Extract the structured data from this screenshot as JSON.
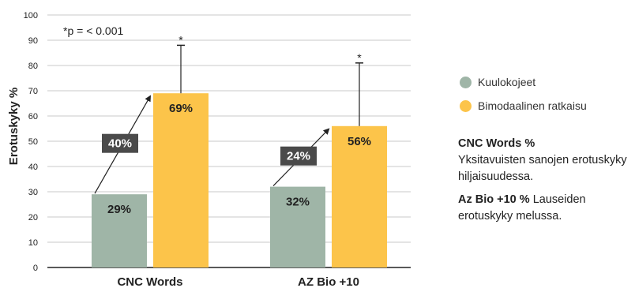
{
  "chart_data": {
    "type": "bar",
    "ylabel": "Erotuskyky %",
    "ylim": [
      0,
      100
    ],
    "yticks": [
      0,
      10,
      20,
      30,
      40,
      50,
      60,
      70,
      80,
      90,
      100
    ],
    "grid": true,
    "categories": [
      "CNC Words",
      "AZ Bio +10"
    ],
    "series": [
      {
        "name": "Kuulokojeet",
        "color": "#9fb5a7",
        "values": [
          29,
          32
        ],
        "labels": [
          "29%",
          "32%"
        ]
      },
      {
        "name": "Bimodaalinen ratkaisu",
        "color": "#fcc44a",
        "values": [
          69,
          56
        ],
        "labels": [
          "69%",
          "56%"
        ]
      }
    ],
    "error_bar_tops": [
      88,
      81
    ],
    "significance_marks": [
      "*",
      "*"
    ],
    "improvements": [
      "40%",
      "24%"
    ],
    "annotation": "*p = < 0.001",
    "legend_placement": "right"
  },
  "description": {
    "cnc_title": "CNC Words %",
    "cnc_text": "Yksitavuisten sanojen erotuskyky hiljaisuudessa.",
    "az_title": "Az Bio +10 %",
    "az_text": "Lauseiden erotuskyky melussa."
  }
}
